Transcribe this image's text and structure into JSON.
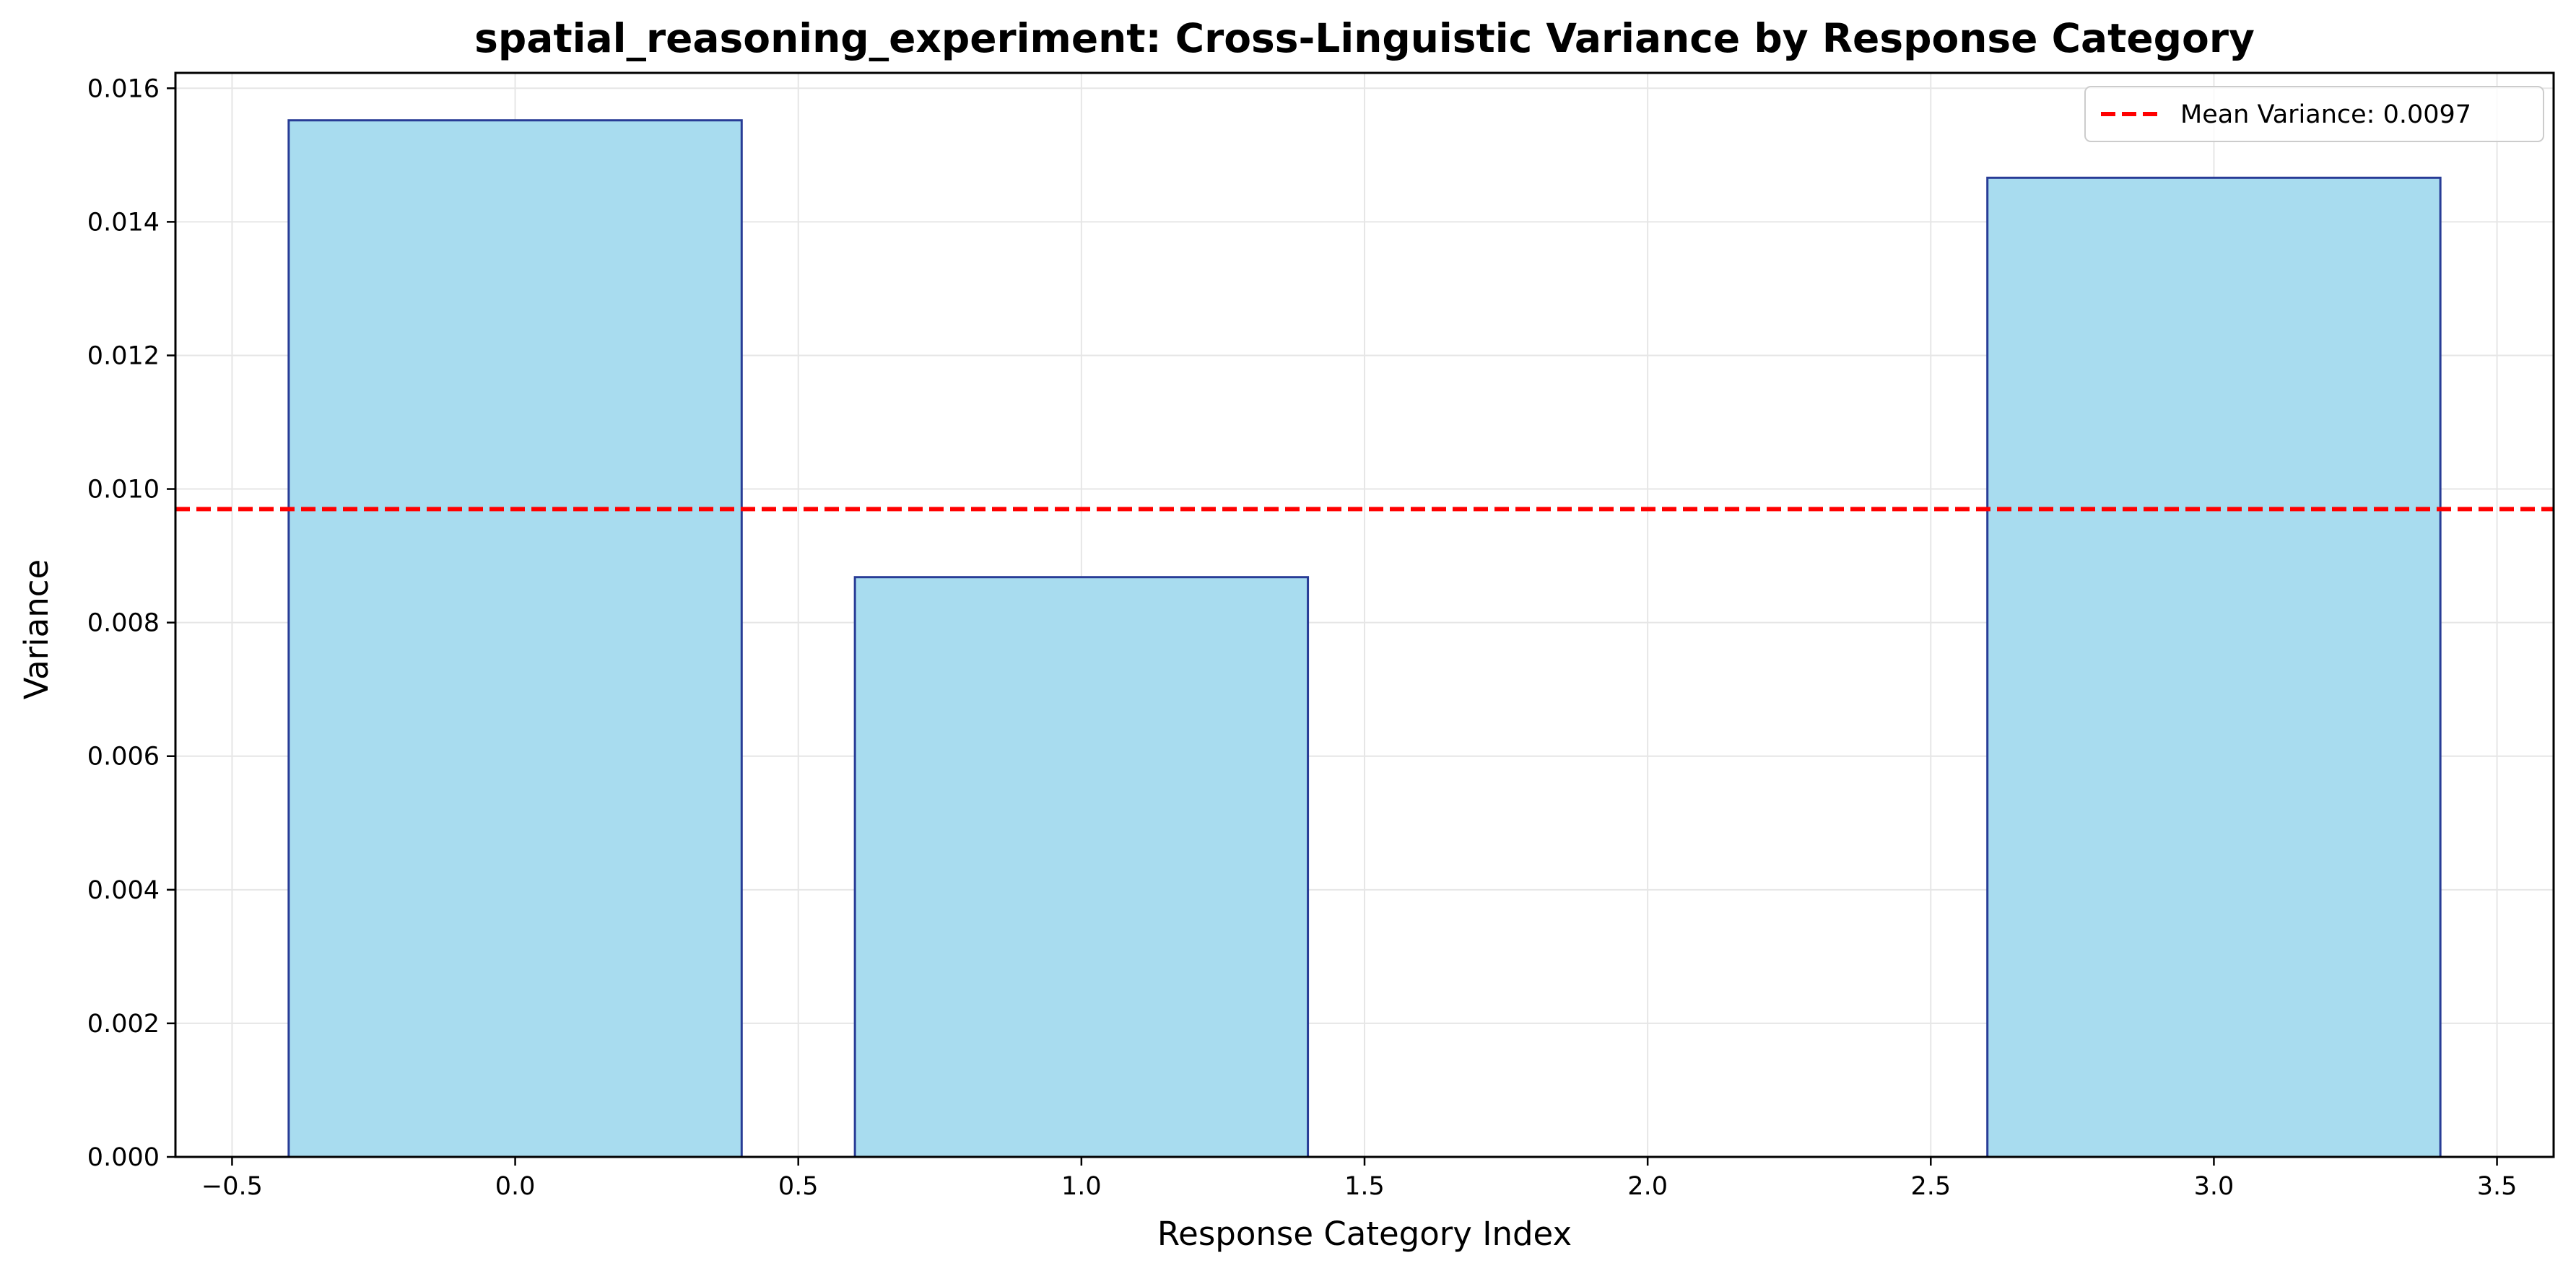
{
  "chart_data": {
    "type": "bar",
    "title": "spatial_reasoning_experiment: Cross-Linguistic Variance by Response Category",
    "xlabel": "Response Category Index",
    "ylabel": "Variance",
    "x": [
      0,
      1,
      2,
      3
    ],
    "values": [
      0.01552,
      0.00868,
      0.0,
      0.01466
    ],
    "bar_width": 0.8,
    "xlim": [
      -0.6,
      3.6
    ],
    "ylim": [
      0,
      0.01623
    ],
    "x_ticks": [
      -0.5,
      0.0,
      0.5,
      1.0,
      1.5,
      2.0,
      2.5,
      3.0,
      3.5
    ],
    "x_tick_labels": [
      "−0.5",
      "0.0",
      "0.5",
      "1.0",
      "1.5",
      "2.0",
      "2.5",
      "3.0",
      "3.5"
    ],
    "y_ticks": [
      0.0,
      0.002,
      0.004,
      0.006,
      0.008,
      0.01,
      0.012,
      0.014,
      0.016
    ],
    "y_tick_labels": [
      "0.000",
      "0.002",
      "0.004",
      "0.006",
      "0.008",
      "0.010",
      "0.012",
      "0.014",
      "0.016"
    ],
    "grid": true,
    "mean_line": {
      "value": 0.0097,
      "label": "Mean Variance: 0.0097",
      "color": "#ff0000",
      "style": "dashed"
    },
    "legend": {
      "position": "top-right"
    },
    "colors": {
      "bar_fill": "#a8dcef",
      "bar_edge": "#283c96",
      "grid": "#e6e6e6"
    }
  }
}
